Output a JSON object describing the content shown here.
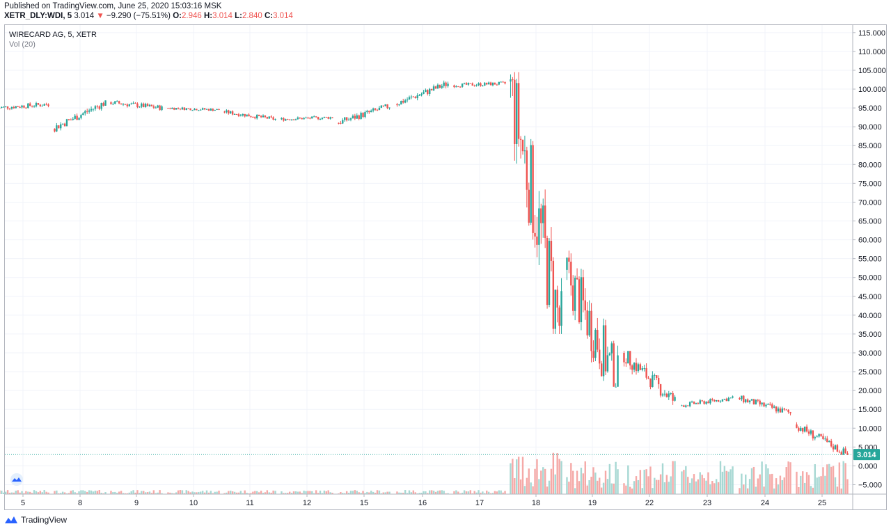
{
  "header": {
    "published": "Published on TradingView.com, June 25, 2020 15:03:16 MSK",
    "symbol": "XETR_DLY:WDI, 5",
    "last": "3.014",
    "change": "−9.290 (−75.51%)",
    "o_label": "O:",
    "o_value": "2.946",
    "h_label": "H:",
    "h_value": "3.014",
    "l_label": "L:",
    "l_value": "2.840",
    "c_label": "C:",
    "c_value": "3.014"
  },
  "pane": {
    "series_title": "WIRECARD AG, 5, XETR",
    "volume_title": "Vol (20)"
  },
  "footer": {
    "brand": "TradingView"
  },
  "colors": {
    "up": "#26a69a",
    "down": "#ef5350",
    "vol_up": "#a7d8d3",
    "vol_down": "#f5a9a7",
    "last_price_tag": "#26a69a",
    "grid": "#f0f3fa",
    "axis_text": "#131722"
  },
  "chart_data": {
    "type": "candlestick",
    "y_ticks": [
      "115.000",
      "110.000",
      "105.000",
      "100.000",
      "95.000",
      "90.000",
      "85.000",
      "80.000",
      "75.000",
      "70.000",
      "65.000",
      "60.000",
      "55.000",
      "50.000",
      "45.000",
      "40.000",
      "35.000",
      "30.000",
      "25.000",
      "20.000",
      "15.000",
      "10.000",
      "5.000",
      "0.000",
      "−5.000"
    ],
    "y_tick_values": [
      115,
      110,
      105,
      100,
      95,
      90,
      85,
      80,
      75,
      70,
      65,
      60,
      55,
      50,
      45,
      40,
      35,
      30,
      25,
      20,
      15,
      10,
      5,
      0,
      -5
    ],
    "ylim": [
      -7.5,
      117
    ],
    "x_ticks": [
      "5",
      "8",
      "9",
      "10",
      "11",
      "12",
      "15",
      "16",
      "17",
      "18",
      "19",
      "22",
      "23",
      "24",
      "25"
    ],
    "last_price": 3.014,
    "last_price_label": "3.014",
    "sessions": [
      {
        "day": "5",
        "open": 95.0,
        "close": 96.0,
        "high": 97.5,
        "low": 92.5
      },
      {
        "day": "8",
        "open": 89.5,
        "close": 96.5,
        "high": 97.0,
        "low": 88.5
      },
      {
        "day": "9",
        "open": 96.5,
        "close": 95.0,
        "high": 99.5,
        "low": 94.0
      },
      {
        "day": "10",
        "open": 95.0,
        "close": 94.5,
        "high": 96.0,
        "low": 93.0
      },
      {
        "day": "11",
        "open": 94.0,
        "close": 92.0,
        "high": 95.0,
        "low": 90.5
      },
      {
        "day": "12",
        "open": 92.0,
        "close": 92.5,
        "high": 93.5,
        "low": 90.0
      },
      {
        "day": "15",
        "open": 91.0,
        "close": 95.5,
        "high": 96.0,
        "low": 89.0
      },
      {
        "day": "16",
        "open": 96.0,
        "close": 101.5,
        "high": 102.5,
        "low": 95.0
      },
      {
        "day": "17",
        "open": 101.0,
        "close": 101.5,
        "high": 102.5,
        "low": 98.5
      },
      {
        "day": "18",
        "open": 102.0,
        "close": 35.0,
        "high": 104.5,
        "low": 35.0
      },
      {
        "day": "19",
        "open": 52.0,
        "close": 22.0,
        "high": 64.0,
        "low": 21.0
      },
      {
        "day": "22",
        "open": 30.0,
        "close": 17.0,
        "high": 30.5,
        "low": 13.5
      },
      {
        "day": "23",
        "open": 16.0,
        "close": 18.0,
        "high": 19.0,
        "low": 14.0
      },
      {
        "day": "24",
        "open": 18.0,
        "close": 14.0,
        "high": 19.5,
        "low": 12.0
      },
      {
        "day": "25",
        "open": 11.0,
        "close": 3.014,
        "high": 12.0,
        "low": 2.84
      }
    ]
  }
}
